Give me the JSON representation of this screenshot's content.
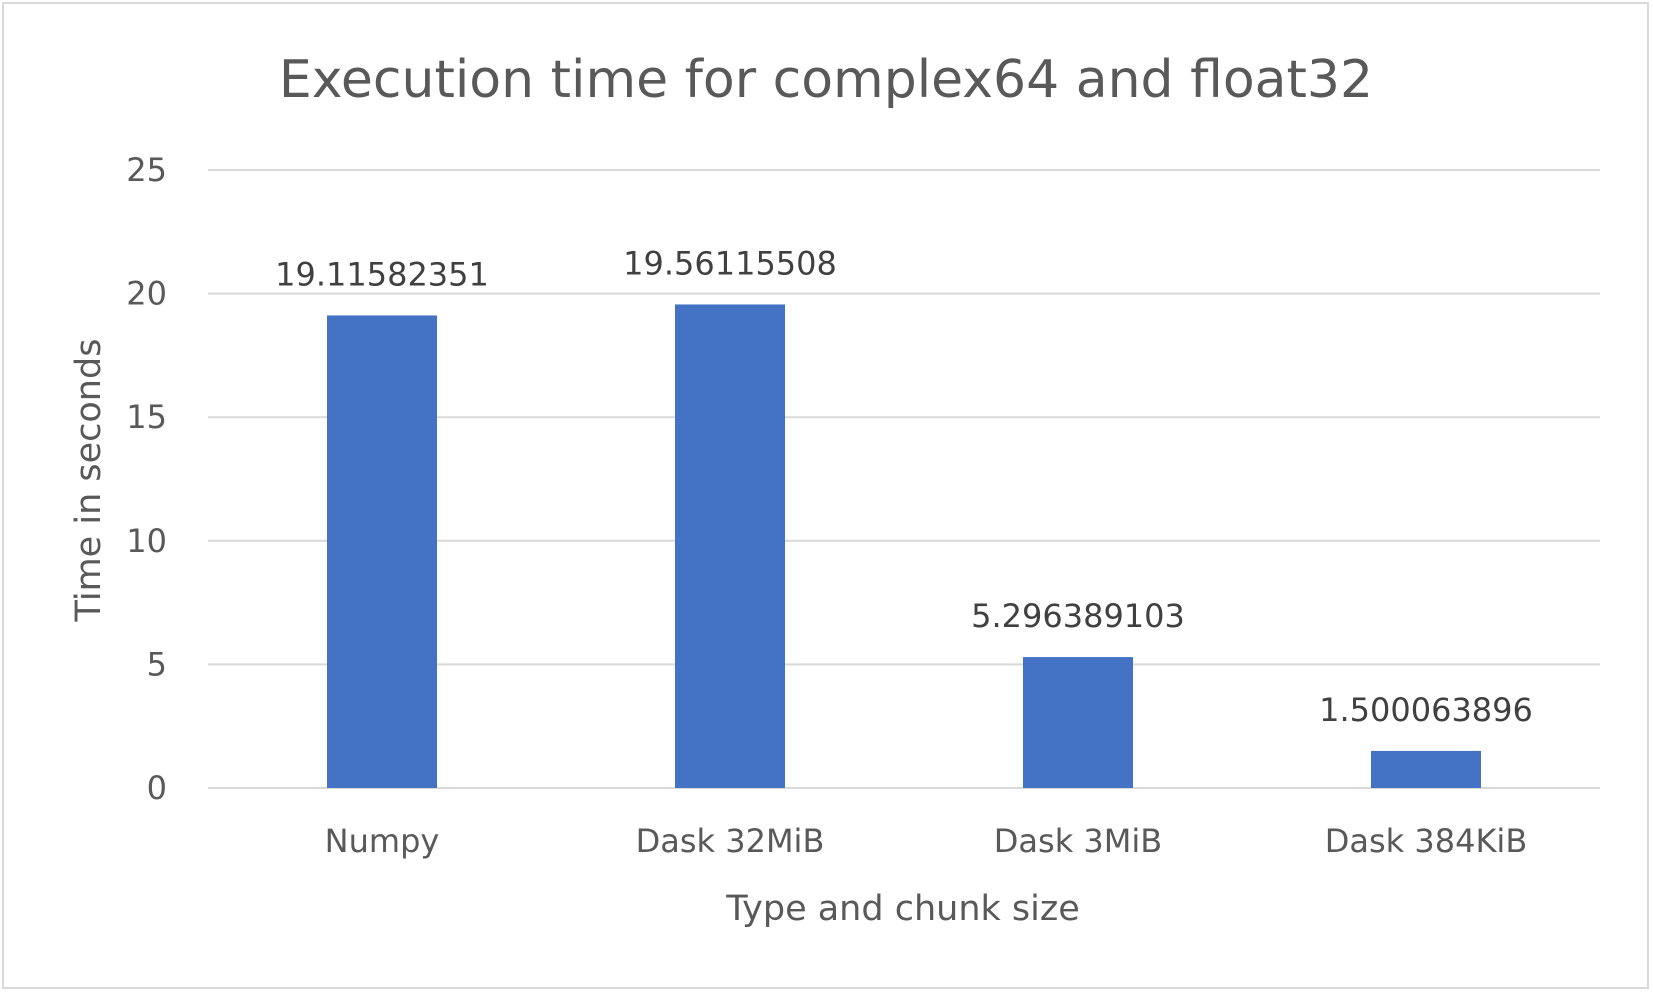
{
  "chart_data": {
    "type": "bar",
    "title": "Execution time for complex64 and float32",
    "xlabel": "Type and chunk size",
    "ylabel": "Time in seconds",
    "categories": [
      "Numpy",
      "Dask 32MiB",
      "Dask 3MiB",
      "Dask 384KiB"
    ],
    "series": [
      {
        "values": [
          19.11582351,
          19.56115508,
          5.296389103,
          1.500063896
        ],
        "color": "#4472c4"
      }
    ],
    "data_labels": [
      "19.11582351",
      "19.56115508",
      "5.296389103",
      "1.500063896"
    ],
    "ylim": [
      0,
      25
    ],
    "yticks": [
      0,
      5,
      10,
      15,
      20,
      25
    ],
    "grid": true,
    "legend": "none"
  }
}
